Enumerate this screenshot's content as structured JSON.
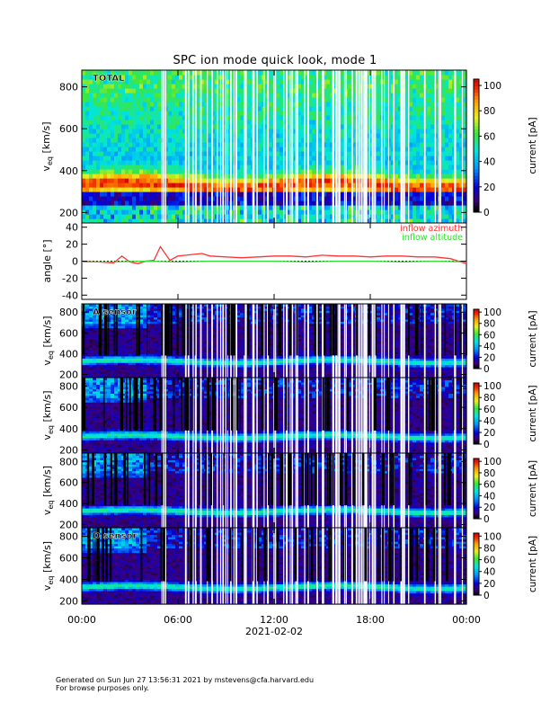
{
  "title": "SPC ion mode quick look, mode 1",
  "footer": {
    "line1": "Generated on Sun Jun 27 13:56:31 2021 by mstevens@cfa.harvard.edu",
    "line2": "For browse purposes only."
  },
  "chart_data": [
    {
      "type": "heatmap",
      "panel": "total",
      "label": "TOTAL",
      "ylabel": "v_eq [km/s]",
      "ylim": [
        150,
        880
      ],
      "yticks": [
        200,
        400,
        600,
        800
      ],
      "colorbar": {
        "label": "current [pA]",
        "range": [
          0,
          105
        ],
        "ticks": [
          0,
          20,
          40,
          60,
          80,
          100
        ]
      },
      "band_center_km_s": 330,
      "colors": {
        "low": "#0000aa",
        "high": "#ee0000"
      }
    },
    {
      "type": "line",
      "panel": "angles",
      "ylabel": "angle [°]",
      "ylim": [
        -45,
        45
      ],
      "yticks": [
        -40,
        -20,
        0,
        20,
        40
      ],
      "series": [
        {
          "name": "inflow azimuth",
          "color": "#ff3333",
          "x_hours": [
            0,
            1,
            2,
            2.5,
            3,
            3.5,
            4,
            4.5,
            4.9,
            5.5,
            6,
            6.5,
            7,
            7.5,
            8,
            9,
            10,
            11,
            12,
            13,
            14,
            15,
            16,
            17,
            18,
            19,
            20,
            21,
            22,
            23,
            23.5,
            24
          ],
          "values": [
            0,
            -1,
            -2,
            6,
            -1,
            -3,
            0,
            1,
            17,
            1,
            6,
            7,
            8,
            9,
            6,
            5,
            4,
            5,
            6,
            6,
            5,
            7,
            6,
            6,
            5,
            6,
            6,
            5,
            5,
            3,
            0,
            -3
          ]
        },
        {
          "name": "inflow altitude",
          "color": "#33dd33",
          "x_hours": [
            0,
            2,
            4,
            6,
            8,
            10,
            12,
            14,
            16,
            18,
            20,
            22,
            24
          ],
          "values": [
            -1,
            -1,
            0,
            -1,
            0,
            0,
            0,
            -1,
            0,
            0,
            -1,
            0,
            -1
          ]
        }
      ]
    },
    {
      "type": "heatmap",
      "panel": "A sensor",
      "label": "A sensor",
      "ylabel": "v_eq [km/s]",
      "ylim": [
        170,
        880
      ],
      "yticks": [
        200,
        400,
        600,
        800
      ],
      "colorbar": {
        "label": "current [pA]",
        "range": [
          0,
          105
        ],
        "ticks": [
          0,
          20,
          40,
          60,
          80,
          100
        ]
      },
      "band_center_km_s": 330
    },
    {
      "type": "heatmap",
      "panel": "B sensor",
      "label": "",
      "ylabel": "v_eq [km/s]",
      "ylim": [
        170,
        880
      ],
      "yticks": [
        200,
        400,
        600,
        800
      ],
      "colorbar": {
        "label": "current [pA]",
        "range": [
          0,
          105
        ],
        "ticks": [
          0,
          20,
          40,
          60,
          80,
          100
        ]
      },
      "band_center_km_s": 330
    },
    {
      "type": "heatmap",
      "panel": "C sensor",
      "label": "",
      "ylabel": "v_eq [km/s]",
      "ylim": [
        170,
        880
      ],
      "yticks": [
        200,
        400,
        600,
        800
      ],
      "colorbar": {
        "label": "current [pA]",
        "range": [
          0,
          105
        ],
        "ticks": [
          0,
          20,
          40,
          60,
          80,
          100
        ]
      },
      "band_center_km_s": 330
    },
    {
      "type": "heatmap",
      "panel": "D sensor",
      "label": "D sensor",
      "ylabel": "v_eq [km/s]",
      "ylim": [
        170,
        880
      ],
      "yticks": [
        200,
        400,
        600,
        800
      ],
      "colorbar": {
        "label": "current [pA]",
        "range": [
          0,
          105
        ],
        "ticks": [
          0,
          20,
          40,
          60,
          80,
          100
        ]
      },
      "band_center_km_s": 330
    }
  ],
  "xaxis": {
    "tick_labels": [
      "00:00",
      "06:00",
      "12:00",
      "18:00",
      "00:00"
    ],
    "tick_hours": [
      0,
      6,
      12,
      18,
      24
    ],
    "date_label": "2021-02-02"
  }
}
